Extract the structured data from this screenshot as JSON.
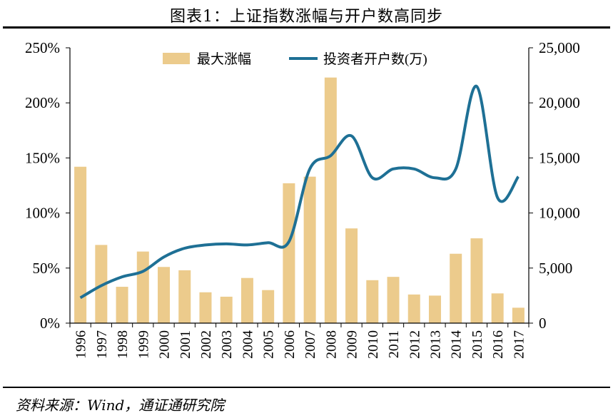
{
  "title": "图表1：上证指数涨幅与开户数高同步",
  "source": "资料来源：Wind，通证通研究院",
  "colors": {
    "bar": "#ECCB8C",
    "line": "#1E7095",
    "axis": "#000000"
  },
  "chart_data": {
    "type": "bar+line",
    "categories": [
      "1996",
      "1997",
      "1998",
      "1999",
      "2000",
      "2001",
      "2002",
      "2003",
      "2004",
      "2005",
      "2006",
      "2007",
      "2008",
      "2009",
      "2010",
      "2011",
      "2012",
      "2013",
      "2014",
      "2015",
      "2016",
      "2017"
    ],
    "series": [
      {
        "name": "最大涨幅",
        "type": "bar",
        "axis": "left",
        "values": [
          142,
          71,
          33,
          65,
          51,
          48,
          28,
          24,
          41,
          30,
          127,
          133,
          223,
          86,
          39,
          42,
          26,
          25,
          63,
          77,
          27,
          14
        ]
      },
      {
        "name": "投资者开户数(万)",
        "type": "line",
        "axis": "right",
        "values": [
          2300,
          3400,
          4200,
          4700,
          6000,
          6800,
          7100,
          7200,
          7100,
          7300,
          7400,
          14000,
          15200,
          17000,
          13200,
          14000,
          14000,
          13200,
          14000,
          21500,
          11400,
          13300
        ]
      }
    ],
    "y_left": {
      "min": 0,
      "max": 250,
      "step": 50,
      "ticks": [
        "0%",
        "50%",
        "100%",
        "150%",
        "200%",
        "250%"
      ]
    },
    "y_right": {
      "min": 0,
      "max": 25000,
      "step": 5000,
      "ticks": [
        "0",
        "5,000",
        "10,000",
        "15,000",
        "20,000",
        "25,000"
      ]
    },
    "legend_position": "top-center",
    "grid": false
  }
}
